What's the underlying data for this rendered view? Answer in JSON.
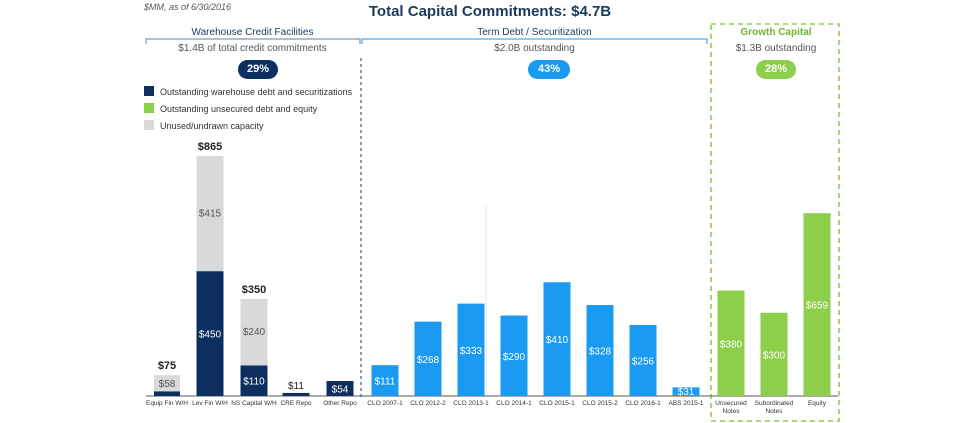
{
  "note": "$MM, as of 6/30/2016",
  "title": "Total Capital Commitments:  $4.7B",
  "sections": [
    {
      "title": "Warehouse Credit Facilities",
      "subtitle": "$1.4B of total credit commitments",
      "pct": "29%"
    },
    {
      "title": "Term Debt / Securitization",
      "subtitle": "$2.0B outstanding",
      "pct": "43%"
    },
    {
      "title": "Growth Capital",
      "subtitle": "$1.3B outstanding",
      "pct": "28%"
    }
  ],
  "legend": [
    {
      "label": "Outstanding warehouse debt and securitizations",
      "color": "#0d2f5f"
    },
    {
      "label": "Outstanding unsecured debt and equity",
      "color": "#8dcf4a"
    },
    {
      "label": "Unused/undrawn capacity",
      "color": "#d9d9d9"
    }
  ],
  "colors": {
    "warehouse": "#0d2f5f",
    "unused": "#d9d9d9",
    "term": "#1a9af0",
    "growth": "#8dcf4a"
  },
  "chart_data": {
    "type": "bar",
    "stacked": true,
    "categories": [
      "Equip Fin W/H",
      "Lev Fin W/H",
      "NS Capital W/H",
      "CRE Repo",
      "Other Repo",
      "CLO 2007-1",
      "CLO 2012-2",
      "CLO 2013-1",
      "CLO 2014-1",
      "CLO 2015-1",
      "CLO 2015-2",
      "CLO 2016-1",
      "ABS 2015-1",
      "Unsecured Notes",
      "Subordinated Notes",
      "Equity"
    ],
    "series": [
      {
        "name": "Outstanding warehouse debt and securitizations",
        "values": [
          17,
          450,
          110,
          11,
          54,
          111,
          268,
          333,
          290,
          410,
          328,
          256,
          31,
          0,
          0,
          0
        ]
      },
      {
        "name": "Unused/undrawn capacity",
        "values": [
          58,
          415,
          240,
          0,
          0,
          0,
          0,
          0,
          0,
          0,
          0,
          0,
          0,
          0,
          0,
          0
        ]
      },
      {
        "name": "Outstanding unsecured debt and equity",
        "values": [
          0,
          0,
          0,
          0,
          0,
          0,
          0,
          0,
          0,
          0,
          0,
          0,
          0,
          380,
          300,
          659
        ]
      }
    ],
    "bar_labels": [
      {
        "inside": [
          "",
          "$450",
          "$110",
          "",
          "$54",
          "$111",
          "$268",
          "$333",
          "$290",
          "$410",
          "$328",
          "$256",
          "$31",
          "$380",
          "$300",
          "$659"
        ]
      },
      {
        "inside": [
          "$58",
          "$415",
          "$240",
          "",
          "",
          "",
          "",
          "",
          "",
          "",
          "",
          "",
          "",
          "",
          "",
          ""
        ]
      }
    ],
    "total_labels": [
      "$75",
      "$865",
      "$350",
      "$11",
      "",
      "",
      "",
      "",
      "",
      "",
      "",
      "",
      "",
      "",
      "",
      ""
    ],
    "ylim": [
      0,
      865
    ]
  }
}
